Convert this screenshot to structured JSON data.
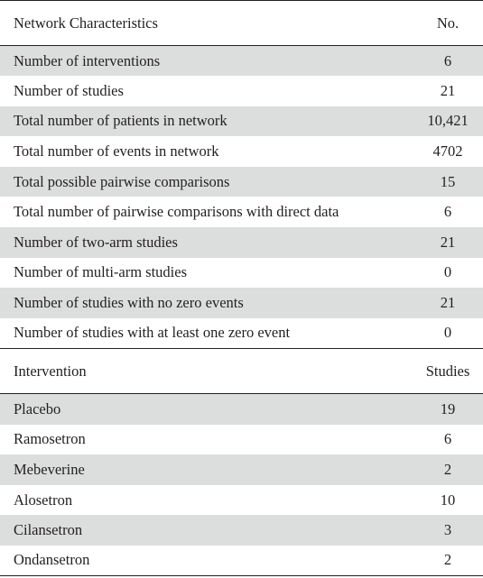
{
  "section1": {
    "header": {
      "label": "Network Characteristics",
      "value": "No."
    },
    "rows": [
      {
        "label": "Number of interventions",
        "value": "6"
      },
      {
        "label": "Number of studies",
        "value": "21"
      },
      {
        "label": "Total number of patients in network",
        "value": "10,421"
      },
      {
        "label": "Total number of events in network",
        "value": "4702"
      },
      {
        "label": "Total possible pairwise comparisons",
        "value": "15"
      },
      {
        "label": "Total number of pairwise comparisons with direct data",
        "value": "6"
      },
      {
        "label": "Number of two-arm studies",
        "value": "21"
      },
      {
        "label": "Number of multi-arm studies",
        "value": "0"
      },
      {
        "label": "Number of studies with no zero events",
        "value": "21"
      },
      {
        "label": "Number of studies with at least one zero event",
        "value": "0"
      }
    ]
  },
  "section2": {
    "header": {
      "label": "Intervention",
      "value": "Studies"
    },
    "rows": [
      {
        "label": "Placebo",
        "value": "19"
      },
      {
        "label": "Ramosetron",
        "value": "6"
      },
      {
        "label": "Mebeverine",
        "value": "2"
      },
      {
        "label": "Alosetron",
        "value": "10"
      },
      {
        "label": "Cilansetron",
        "value": "3"
      },
      {
        "label": "Ondansetron",
        "value": "2"
      }
    ]
  }
}
